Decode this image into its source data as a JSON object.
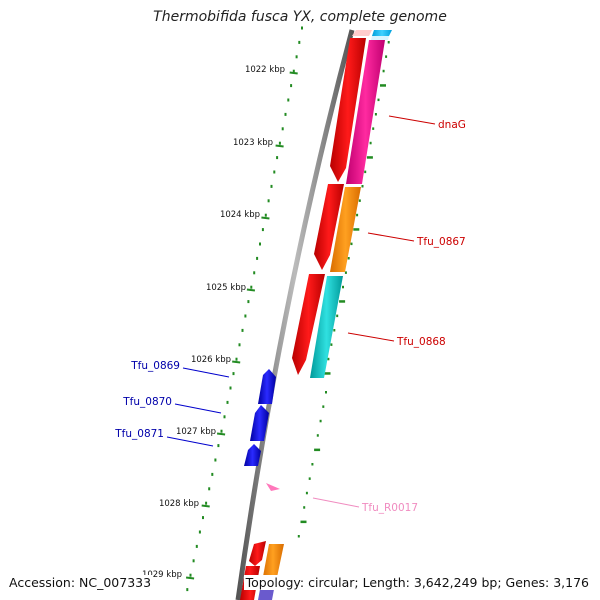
{
  "title": "Thermobifida fusca YX, complete genome",
  "footer": {
    "accession": "Accession: NC_007333",
    "summary": "Topology: circular; Length: 3,642,249 bp; Genes: 3,176"
  },
  "scale": {
    "unit": "kbp",
    "ticks": [
      {
        "label": "1022 kbp"
      },
      {
        "label": "1023 kbp"
      },
      {
        "label": "1024 kbp"
      },
      {
        "label": "1025 kbp"
      },
      {
        "label": "1026 kbp"
      },
      {
        "label": "1027 kbp"
      },
      {
        "label": "1028 kbp"
      },
      {
        "label": "1029 kbp"
      }
    ]
  },
  "gene_labels": [
    {
      "text": "dnaG",
      "color": "#cc0000"
    },
    {
      "text": "Tfu_0867",
      "color": "#cc0000"
    },
    {
      "text": "Tfu_0868",
      "color": "#cc0000"
    },
    {
      "text": "Tfu_0869",
      "color": "#0000aa"
    },
    {
      "text": "Tfu_0870",
      "color": "#0000aa"
    },
    {
      "text": "Tfu_0871",
      "color": "#0000aa"
    },
    {
      "text": "Tfu_R0017",
      "color": "#f08cc0"
    }
  ],
  "colors": {
    "cds_forward": "#ff0000",
    "cds_reverse": "#0000ff",
    "backbone": "#888888",
    "tick": "#228b22",
    "rrna": "#ff77bb",
    "cog_magenta": "#ff1493",
    "cog_orange": "#ff8c00",
    "cog_cyan": "#00c8c8"
  }
}
